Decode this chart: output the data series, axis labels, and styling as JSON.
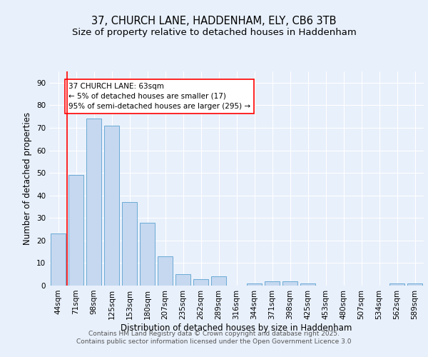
{
  "title_line1": "37, CHURCH LANE, HADDENHAM, ELY, CB6 3TB",
  "title_line2": "Size of property relative to detached houses in Haddenham",
  "xlabel": "Distribution of detached houses by size in Haddenham",
  "ylabel": "Number of detached properties",
  "categories": [
    "44sqm",
    "71sqm",
    "98sqm",
    "125sqm",
    "153sqm",
    "180sqm",
    "207sqm",
    "235sqm",
    "262sqm",
    "289sqm",
    "316sqm",
    "344sqm",
    "371sqm",
    "398sqm",
    "425sqm",
    "453sqm",
    "480sqm",
    "507sqm",
    "534sqm",
    "562sqm",
    "589sqm"
  ],
  "values": [
    23,
    49,
    74,
    71,
    37,
    28,
    13,
    5,
    3,
    4,
    0,
    1,
    2,
    2,
    1,
    0,
    0,
    0,
    0,
    1,
    1
  ],
  "bar_color": "#c5d8f0",
  "bar_edge_color": "#6aaad4",
  "red_line_x": 0.5,
  "annotation_box_text": "37 CHURCH LANE: 63sqm\n← 5% of detached houses are smaller (17)\n95% of semi-detached houses are larger (295) →",
  "ylim": [
    0,
    95
  ],
  "yticks": [
    0,
    10,
    20,
    30,
    40,
    50,
    60,
    70,
    80,
    90
  ],
  "bg_color": "#e8f0fb",
  "plot_bg_color": "#e8f0fb",
  "footer_line1": "Contains HM Land Registry data © Crown copyright and database right 2025.",
  "footer_line2": "Contains public sector information licensed under the Open Government Licence 3.0",
  "title_fontsize": 10.5,
  "subtitle_fontsize": 9.5,
  "axis_label_fontsize": 8.5,
  "tick_fontsize": 7.5,
  "annotation_fontsize": 7.5,
  "footer_fontsize": 6.5
}
